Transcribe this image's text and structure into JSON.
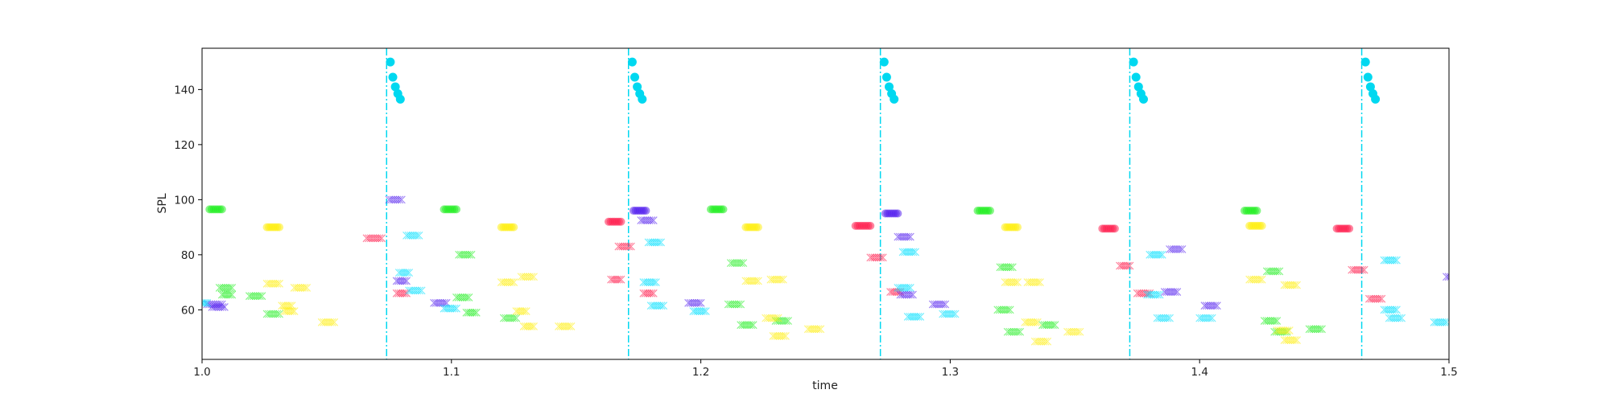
{
  "chart_data": {
    "type": "scatter",
    "title": "",
    "xlabel": "time",
    "ylabel": "SPL",
    "xlim": [
      1.0,
      1.5
    ],
    "ylim": [
      42,
      155
    ],
    "x_ticks": [
      1.0,
      1.1,
      1.2,
      1.3,
      1.4,
      1.5
    ],
    "x_tick_labels": [
      "1.0",
      "1.1",
      "1.2",
      "1.3",
      "1.4",
      "1.5"
    ],
    "y_ticks": [
      60,
      80,
      100,
      120,
      140
    ],
    "y_tick_labels": [
      "60",
      "80",
      "100",
      "120",
      "140"
    ],
    "grid": false,
    "legend": "none",
    "vlines": {
      "color": "#00d8f0",
      "style": "dash-dot",
      "x": [
        1.074,
        1.171,
        1.272,
        1.372,
        1.465
      ]
    },
    "onset_markers": {
      "color": "#00d8f0",
      "marker": "circle",
      "y": [
        150,
        144.5,
        141,
        138.5,
        136.5
      ],
      "x_offsets": [
        0.0015,
        0.0025,
        0.0035,
        0.0045,
        0.0055
      ]
    },
    "series": [
      {
        "color": "#ff2050",
        "segments": [
          {
            "x": [
              1.066,
              1.072
            ],
            "y": 86,
            "marker": "x"
          },
          {
            "x": [
              1.078,
              1.082
            ],
            "y": 66,
            "marker": "x"
          },
          {
            "x": [
              1.163,
              1.168
            ],
            "y": 92,
            "marker": "circle"
          },
          {
            "x": [
              1.167,
              1.172
            ],
            "y": 83,
            "marker": "x"
          },
          {
            "x": [
              1.164,
              1.168
            ],
            "y": 71,
            "marker": "x"
          },
          {
            "x": [
              1.177,
              1.181
            ],
            "y": 66,
            "marker": "x"
          },
          {
            "x": [
              1.262,
              1.268
            ],
            "y": 90.5,
            "marker": "circle"
          },
          {
            "x": [
              1.268,
              1.273
            ],
            "y": 79,
            "marker": "x"
          },
          {
            "x": [
              1.276,
              1.28
            ],
            "y": 66.5,
            "marker": "x"
          },
          {
            "x": [
              1.361,
              1.366
            ],
            "y": 89.5,
            "marker": "circle"
          },
          {
            "x": [
              1.368,
              1.372
            ],
            "y": 76,
            "marker": "x"
          },
          {
            "x": [
              1.375,
              1.38
            ],
            "y": 66,
            "marker": "x"
          },
          {
            "x": [
              1.455,
              1.46
            ],
            "y": 89.5,
            "marker": "circle"
          },
          {
            "x": [
              1.461,
              1.466
            ],
            "y": 74.5,
            "marker": "x"
          },
          {
            "x": [
              1.468,
              1.473
            ],
            "y": 64,
            "marker": "x"
          }
        ]
      },
      {
        "color": "#22ee22",
        "segments": [
          {
            "x": [
              1.003,
              1.008
            ],
            "y": 96.5,
            "marker": "circle"
          },
          {
            "x": [
              1.007,
              1.012
            ],
            "y": 68,
            "marker": "x"
          },
          {
            "x": [
              1.008,
              1.012
            ],
            "y": 65.5,
            "marker": "x"
          },
          {
            "x": [
              1.019,
              1.024
            ],
            "y": 65,
            "marker": "x"
          },
          {
            "x": [
              1.026,
              1.031
            ],
            "y": 58.5,
            "marker": "x"
          },
          {
            "x": [
              1.097,
              1.102
            ],
            "y": 96.5,
            "marker": "circle"
          },
          {
            "x": [
              1.103,
              1.108
            ],
            "y": 80,
            "marker": "x"
          },
          {
            "x": [
              1.102,
              1.107
            ],
            "y": 64.5,
            "marker": "x"
          },
          {
            "x": [
              1.106,
              1.11
            ],
            "y": 59,
            "marker": "x"
          },
          {
            "x": [
              1.121,
              1.126
            ],
            "y": 57,
            "marker": "x"
          },
          {
            "x": [
              1.204,
              1.209
            ],
            "y": 96.5,
            "marker": "circle"
          },
          {
            "x": [
              1.212,
              1.217
            ],
            "y": 77,
            "marker": "x"
          },
          {
            "x": [
              1.211,
              1.216
            ],
            "y": 62,
            "marker": "x"
          },
          {
            "x": [
              1.216,
              1.221
            ],
            "y": 54.5,
            "marker": "x"
          },
          {
            "x": [
              1.23,
              1.235
            ],
            "y": 56,
            "marker": "x"
          },
          {
            "x": [
              1.311,
              1.316
            ],
            "y": 96,
            "marker": "circle"
          },
          {
            "x": [
              1.32,
              1.325
            ],
            "y": 75.5,
            "marker": "x"
          },
          {
            "x": [
              1.319,
              1.324
            ],
            "y": 60,
            "marker": "x"
          },
          {
            "x": [
              1.323,
              1.328
            ],
            "y": 52,
            "marker": "x"
          },
          {
            "x": [
              1.337,
              1.342
            ],
            "y": 54.5,
            "marker": "x"
          },
          {
            "x": [
              1.418,
              1.423
            ],
            "y": 96,
            "marker": "circle"
          },
          {
            "x": [
              1.427,
              1.432
            ],
            "y": 74,
            "marker": "x"
          },
          {
            "x": [
              1.426,
              1.431
            ],
            "y": 56,
            "marker": "x"
          },
          {
            "x": [
              1.43,
              1.435
            ],
            "y": 52,
            "marker": "x"
          },
          {
            "x": [
              1.444,
              1.449
            ],
            "y": 53,
            "marker": "x"
          }
        ]
      },
      {
        "color": "#ffee11",
        "segments": [
          {
            "x": [
              1.026,
              1.031
            ],
            "y": 90,
            "marker": "circle"
          },
          {
            "x": [
              1.026,
              1.031
            ],
            "y": 69.5,
            "marker": "x"
          },
          {
            "x": [
              1.032,
              1.036
            ],
            "y": 61.5,
            "marker": "x"
          },
          {
            "x": [
              1.033,
              1.037
            ],
            "y": 59.5,
            "marker": "x"
          },
          {
            "x": [
              1.037,
              1.042
            ],
            "y": 68,
            "marker": "x"
          },
          {
            "x": [
              1.048,
              1.053
            ],
            "y": 55.5,
            "marker": "x"
          },
          {
            "x": [
              1.12,
              1.125
            ],
            "y": 90,
            "marker": "circle"
          },
          {
            "x": [
              1.12,
              1.125
            ],
            "y": 70,
            "marker": "x"
          },
          {
            "x": [
              1.126,
              1.13
            ],
            "y": 59.5,
            "marker": "x"
          },
          {
            "x": [
              1.128,
              1.133
            ],
            "y": 72,
            "marker": "x"
          },
          {
            "x": [
              1.129,
              1.133
            ],
            "y": 54,
            "marker": "x"
          },
          {
            "x": [
              1.143,
              1.148
            ],
            "y": 54,
            "marker": "x"
          },
          {
            "x": [
              1.218,
              1.223
            ],
            "y": 90,
            "marker": "circle"
          },
          {
            "x": [
              1.218,
              1.223
            ],
            "y": 70.5,
            "marker": "x"
          },
          {
            "x": [
              1.226,
              1.231
            ],
            "y": 57,
            "marker": "x"
          },
          {
            "x": [
              1.228,
              1.233
            ],
            "y": 71,
            "marker": "x"
          },
          {
            "x": [
              1.229,
              1.234
            ],
            "y": 50.5,
            "marker": "x"
          },
          {
            "x": [
              1.243,
              1.248
            ],
            "y": 53,
            "marker": "x"
          },
          {
            "x": [
              1.322,
              1.327
            ],
            "y": 90,
            "marker": "circle"
          },
          {
            "x": [
              1.322,
              1.327
            ],
            "y": 70,
            "marker": "x"
          },
          {
            "x": [
              1.33,
              1.335
            ],
            "y": 55.5,
            "marker": "x"
          },
          {
            "x": [
              1.331,
              1.336
            ],
            "y": 70,
            "marker": "x"
          },
          {
            "x": [
              1.334,
              1.339
            ],
            "y": 48.5,
            "marker": "x"
          },
          {
            "x": [
              1.347,
              1.352
            ],
            "y": 52,
            "marker": "x"
          },
          {
            "x": [
              1.42,
              1.425
            ],
            "y": 90.5,
            "marker": "circle"
          },
          {
            "x": [
              1.42,
              1.425
            ],
            "y": 71,
            "marker": "x"
          },
          {
            "x": [
              1.431,
              1.436
            ],
            "y": 52.5,
            "marker": "x"
          },
          {
            "x": [
              1.434,
              1.439
            ],
            "y": 69,
            "marker": "x"
          },
          {
            "x": [
              1.434,
              1.439
            ],
            "y": 49,
            "marker": "x"
          }
        ]
      },
      {
        "color": "#5522ee",
        "segments": [
          {
            "x": [
              1.002,
              1.008
            ],
            "y": 62,
            "marker": "x"
          },
          {
            "x": [
              1.004,
              1.009
            ],
            "y": 61,
            "marker": "x"
          },
          {
            "x": [
              1.075,
              1.08
            ],
            "y": 100,
            "marker": "x"
          },
          {
            "x": [
              1.078,
              1.082
            ],
            "y": 70.5,
            "marker": "x"
          },
          {
            "x": [
              1.093,
              1.098
            ],
            "y": 62.5,
            "marker": "x"
          },
          {
            "x": [
              1.173,
              1.178
            ],
            "y": 96,
            "marker": "circle"
          },
          {
            "x": [
              1.176,
              1.181
            ],
            "y": 92.5,
            "marker": "x"
          },
          {
            "x": [
              1.195,
              1.2
            ],
            "y": 62.5,
            "marker": "x"
          },
          {
            "x": [
              1.274,
              1.279
            ],
            "y": 95,
            "marker": "circle"
          },
          {
            "x": [
              1.279,
              1.284
            ],
            "y": 86.5,
            "marker": "x"
          },
          {
            "x": [
              1.28,
              1.285
            ],
            "y": 65.5,
            "marker": "x"
          },
          {
            "x": [
              1.293,
              1.298
            ],
            "y": 62,
            "marker": "x"
          },
          {
            "x": [
              1.388,
              1.393
            ],
            "y": 82,
            "marker": "x"
          },
          {
            "x": [
              1.386,
              1.391
            ],
            "y": 66.5,
            "marker": "x"
          },
          {
            "x": [
              1.402,
              1.407
            ],
            "y": 61.5,
            "marker": "x"
          },
          {
            "x": [
              1.499,
              1.504
            ],
            "y": 72,
            "marker": "x"
          }
        ]
      },
      {
        "color": "#00e0ff",
        "segments": [
          {
            "x": [
              1.0,
              1.002
            ],
            "y": 62.5,
            "marker": "x"
          },
          {
            "x": [
              1.079,
              1.083
            ],
            "y": 73.5,
            "marker": "x"
          },
          {
            "x": [
              1.082,
              1.087
            ],
            "y": 87,
            "marker": "x"
          },
          {
            "x": [
              1.083,
              1.088
            ],
            "y": 67,
            "marker": "x"
          },
          {
            "x": [
              1.097,
              1.102
            ],
            "y": 60.5,
            "marker": "x"
          },
          {
            "x": [
              1.179,
              1.184
            ],
            "y": 84.5,
            "marker": "x"
          },
          {
            "x": [
              1.177,
              1.182
            ],
            "y": 70,
            "marker": "x"
          },
          {
            "x": [
              1.18,
              1.185
            ],
            "y": 61.5,
            "marker": "x"
          },
          {
            "x": [
              1.197,
              1.202
            ],
            "y": 59.5,
            "marker": "x"
          },
          {
            "x": [
              1.281,
              1.286
            ],
            "y": 81,
            "marker": "x"
          },
          {
            "x": [
              1.279,
              1.284
            ],
            "y": 68,
            "marker": "x"
          },
          {
            "x": [
              1.283,
              1.288
            ],
            "y": 57.5,
            "marker": "x"
          },
          {
            "x": [
              1.297,
              1.302
            ],
            "y": 58.5,
            "marker": "x"
          },
          {
            "x": [
              1.38,
              1.385
            ],
            "y": 80,
            "marker": "x"
          },
          {
            "x": [
              1.379,
              1.384
            ],
            "y": 65.5,
            "marker": "x"
          },
          {
            "x": [
              1.383,
              1.388
            ],
            "y": 57,
            "marker": "x"
          },
          {
            "x": [
              1.4,
              1.405
            ],
            "y": 57,
            "marker": "x"
          },
          {
            "x": [
              1.474,
              1.479
            ],
            "y": 78,
            "marker": "x"
          },
          {
            "x": [
              1.474,
              1.479
            ],
            "y": 60,
            "marker": "x"
          },
          {
            "x": [
              1.476,
              1.481
            ],
            "y": 57,
            "marker": "x"
          },
          {
            "x": [
              1.494,
              1.499
            ],
            "y": 55.5,
            "marker": "x"
          }
        ]
      }
    ]
  }
}
